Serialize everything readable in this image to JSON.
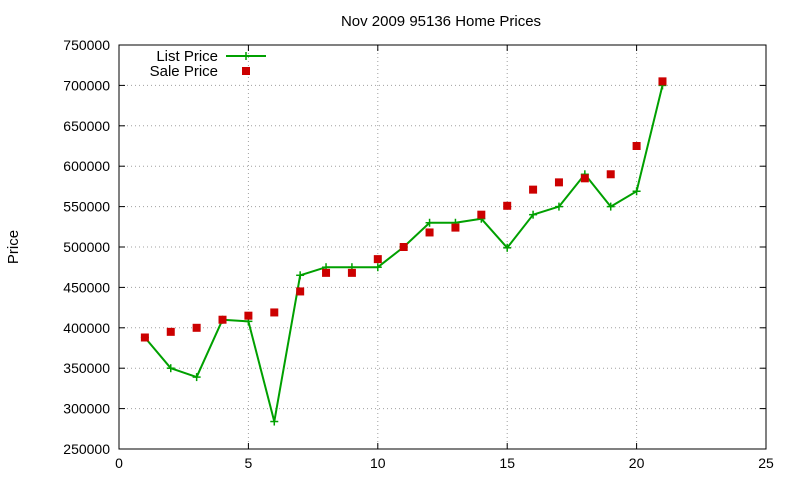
{
  "chart_data": {
    "type": "line",
    "title": "Nov 2009 95136 Home Prices",
    "xlabel": "",
    "ylabel": "Price",
    "xlim": [
      0,
      25
    ],
    "ylim": [
      250000,
      750000
    ],
    "xticks": [
      0,
      5,
      10,
      15,
      20,
      25
    ],
    "yticks": [
      250000,
      300000,
      350000,
      400000,
      450000,
      500000,
      550000,
      600000,
      650000,
      700000,
      750000
    ],
    "grid": true,
    "legend": "top-left",
    "series": [
      {
        "name": "List Price",
        "style": "line+points",
        "marker": "plus",
        "color": "#00a000",
        "x": [
          1,
          2,
          3,
          4,
          5,
          6,
          7,
          8,
          9,
          10,
          11,
          12,
          13,
          14,
          15,
          16,
          17,
          18,
          19,
          20,
          21
        ],
        "values": [
          388000,
          350000,
          339000,
          410000,
          408000,
          284000,
          465000,
          475000,
          475000,
          475000,
          500000,
          530000,
          530000,
          535000,
          499000,
          540000,
          550000,
          590000,
          550000,
          569000,
          700000
        ]
      },
      {
        "name": "Sale Price",
        "style": "points",
        "marker": "square",
        "color": "#cc0000",
        "x": [
          1,
          2,
          3,
          4,
          5,
          6,
          7,
          8,
          9,
          10,
          11,
          12,
          13,
          14,
          15,
          16,
          17,
          18,
          19,
          20,
          21
        ],
        "values": [
          388000,
          395000,
          400000,
          410000,
          415000,
          419000,
          445000,
          468000,
          468000,
          485000,
          500000,
          518000,
          524000,
          540000,
          551000,
          571000,
          580000,
          585000,
          590000,
          625000,
          705000
        ]
      }
    ]
  }
}
